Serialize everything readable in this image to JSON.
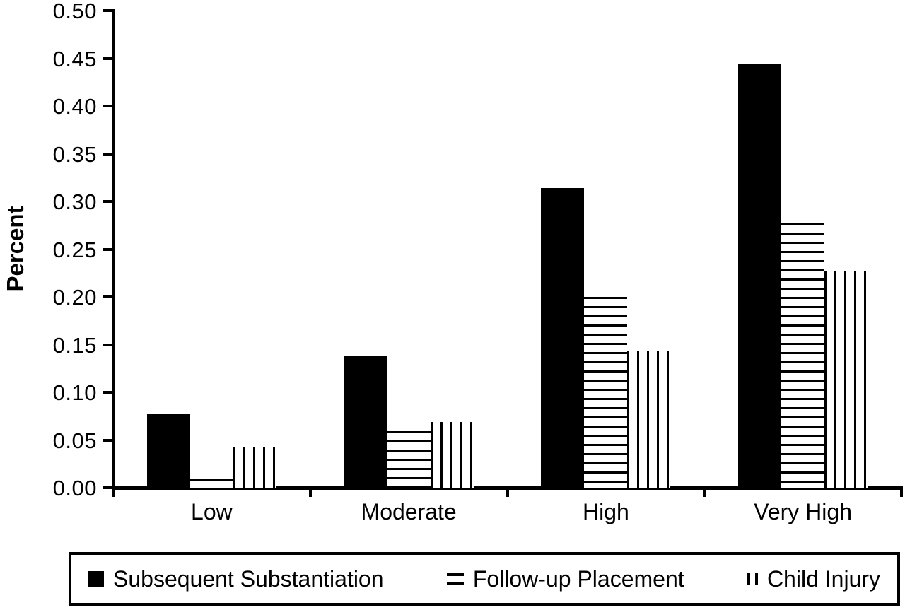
{
  "figure": {
    "background_color": "#ffffff",
    "ink_color": "#000000"
  },
  "chart_data": {
    "type": "bar",
    "title": "",
    "xlabel": "",
    "ylabel": "Percent",
    "ylim": [
      0,
      0.5
    ],
    "ytick_step": 0.05,
    "ytick_labels": [
      "0.00",
      "0.05",
      "0.10",
      "0.15",
      "0.20",
      "0.25",
      "0.30",
      "0.35",
      "0.40",
      "0.45",
      "0.50"
    ],
    "grid": false,
    "legend_position": "bottom",
    "categories": [
      "Low",
      "Moderate",
      "High",
      "Very High"
    ],
    "series": [
      {
        "name": "Subsequent Substantiation",
        "pattern": "solid",
        "values": [
          0.077,
          0.138,
          0.314,
          0.444
        ]
      },
      {
        "name": "Follow-up Placement",
        "pattern": "hlines",
        "values": [
          0.01,
          0.059,
          0.2,
          0.277
        ]
      },
      {
        "name": "Child Injury",
        "pattern": "vlines",
        "values": [
          0.043,
          0.069,
          0.143,
          0.227
        ]
      }
    ]
  }
}
